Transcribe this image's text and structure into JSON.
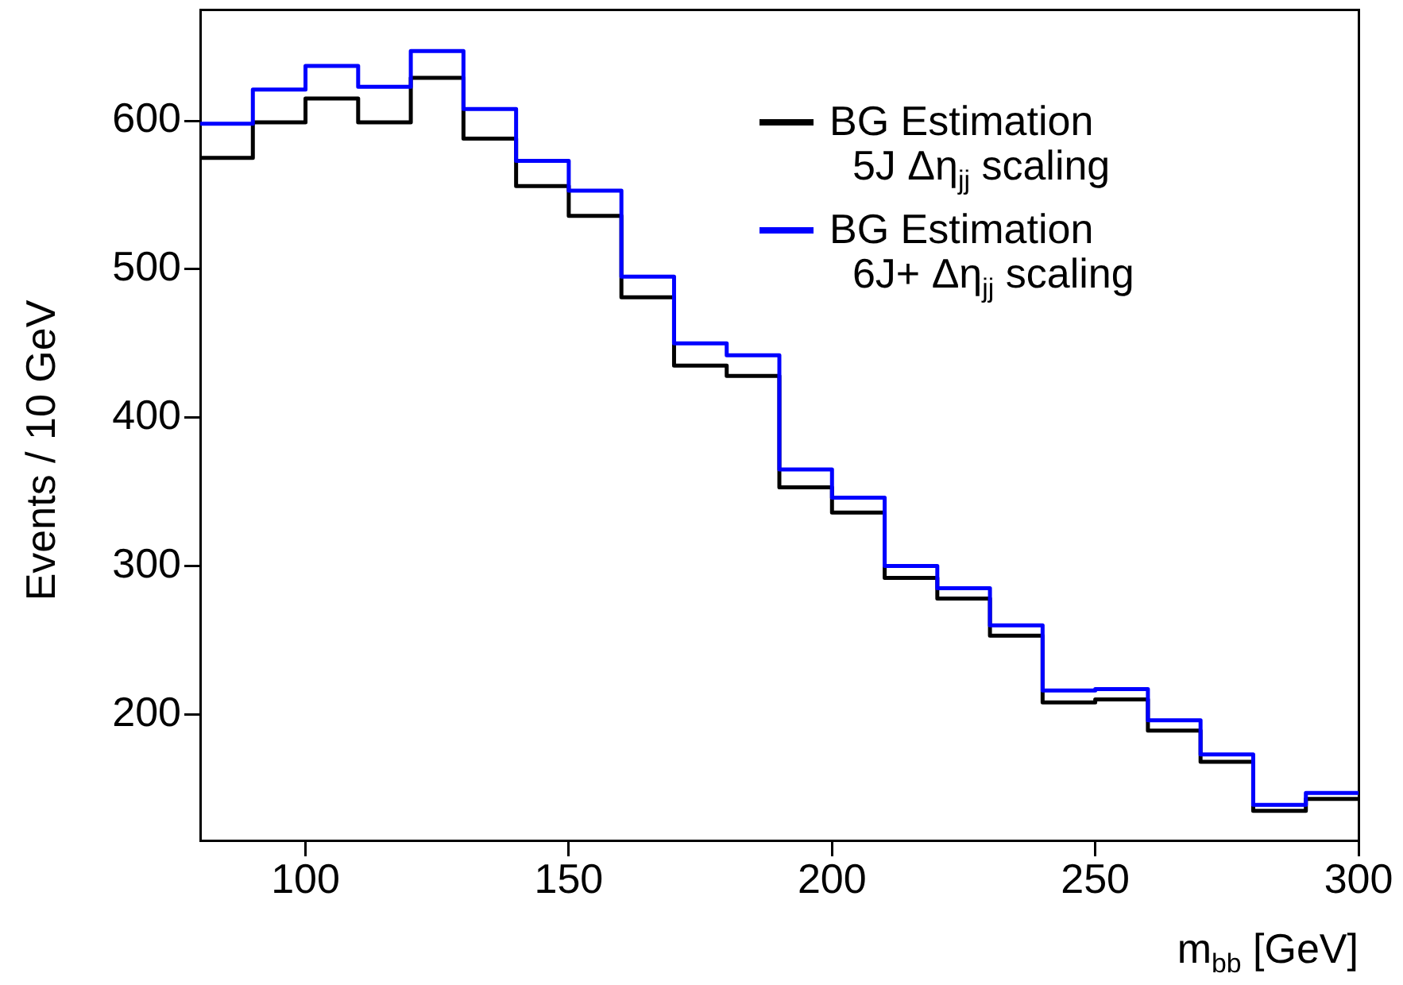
{
  "chart_data": {
    "type": "histogram",
    "xlabel": "m$_{bb}$ [GeV]",
    "ylabel": "Events / 10 GeV",
    "bins": [
      80,
      90,
      100,
      110,
      120,
      130,
      140,
      150,
      160,
      170,
      180,
      190,
      200,
      210,
      220,
      230,
      240,
      250,
      260,
      270,
      280,
      290,
      300
    ],
    "series": [
      {
        "name": "BG Estimation\n  5J Δη$_{jj}$ scaling",
        "color": "#000000",
        "values": [
          575,
          599,
          615,
          599,
          629,
          588,
          556,
          536,
          481,
          435,
          428,
          353,
          336,
          292,
          278,
          253,
          208,
          210,
          189,
          168,
          135,
          143
        ]
      },
      {
        "name": "BG Estimation\n  6J+ Δη$_{jj}$ scaling",
        "color": "#0000ff",
        "values": [
          598,
          621,
          637,
          623,
          647,
          608,
          573,
          553,
          495,
          450,
          442,
          365,
          346,
          300,
          285,
          260,
          216,
          217,
          196,
          173,
          139,
          147
        ]
      }
    ],
    "xlim": [
      80,
      300
    ],
    "xticks": [
      100,
      150,
      200,
      250,
      300
    ],
    "ylim": [
      115,
      675
    ],
    "yticks": [
      200,
      300,
      400,
      500,
      600
    ],
    "legend": "top right"
  }
}
